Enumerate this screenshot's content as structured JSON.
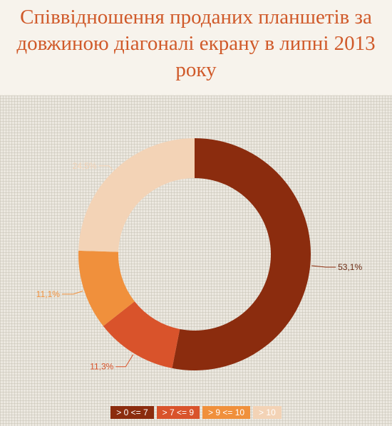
{
  "chart_data": {
    "type": "pie",
    "variant": "donut",
    "title": "Співвідношення проданих планшетів за довжиною діагоналі екрану в липні 2013 року",
    "categories": [
      "> 0 <= 7",
      "> 7 <= 9",
      "> 9 <= 10",
      "> 10"
    ],
    "values": [
      53.1,
      11.3,
      11.1,
      24.5
    ],
    "data_labels": [
      "53,1%",
      "11,3%",
      "11,1%",
      "24,5%"
    ],
    "colors": [
      "#8b2c0e",
      "#d9532b",
      "#f0903c",
      "#f3d3b6"
    ],
    "legend_position": "bottom"
  }
}
